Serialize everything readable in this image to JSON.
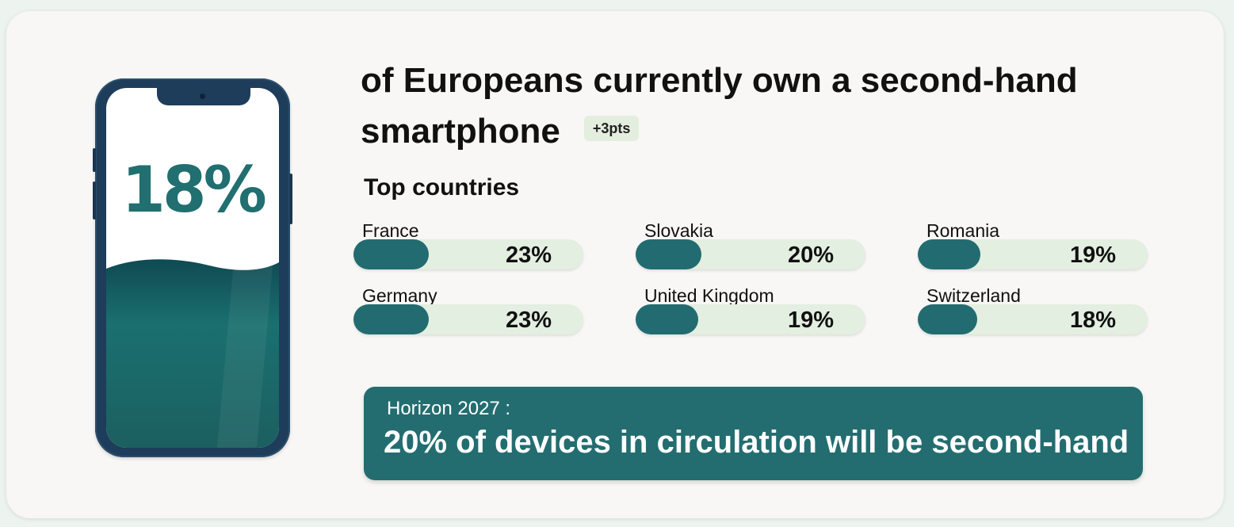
{
  "phone": {
    "stat": "18%"
  },
  "headline": {
    "lead": "of Europeans currently ",
    "emphasis_line1": "own a second-hand",
    "emphasis_line2": "smartphone",
    "delta_badge": "+3pts"
  },
  "top_countries": {
    "title": "Top countries",
    "scale_max_percent": 100,
    "items": [
      {
        "name": "France",
        "value_label": "23%",
        "value": 23
      },
      {
        "name": "Slovakia",
        "value_label": "20%",
        "value": 20
      },
      {
        "name": "Romania",
        "value_label": "19%",
        "value": 19
      },
      {
        "name": "Germany",
        "value_label": "23%",
        "value": 23
      },
      {
        "name": "United Kingdom",
        "value_label": "19%",
        "value": 19
      },
      {
        "name": "Switzerland",
        "value_label": "18%",
        "value": 18
      }
    ]
  },
  "horizon": {
    "label": "Horizon 2027 :",
    "text": "20% of devices in circulation will be second-hand"
  },
  "colors": {
    "accent": "#226c71",
    "bar_track": "#e3efe1",
    "badge_bg": "#e3eedf",
    "card_bg": "#f8f7f5",
    "page_bg": "#edf3ee"
  }
}
